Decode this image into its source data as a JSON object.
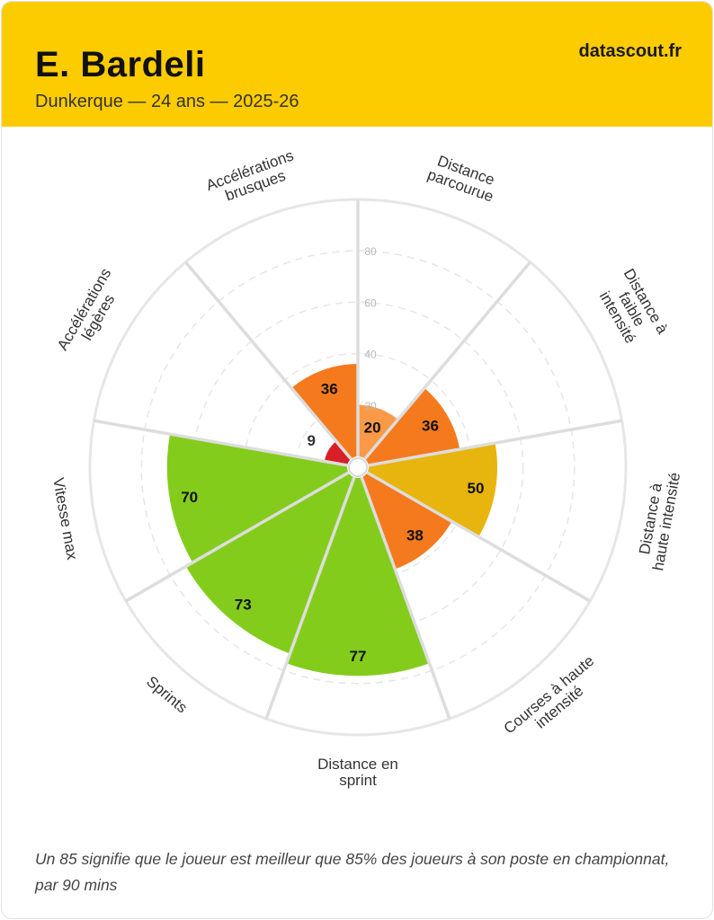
{
  "header": {
    "player": "E. Bardeli",
    "subtitle": "Dunkerque — 24 ans — 2025-26",
    "brand": "datascout.fr"
  },
  "footnote": "Un 85 signifie que le joueur est meilleur que 85% des joueurs à son poste en championnat, par 90 mins",
  "colors": {
    "header_bg": "#fccc00",
    "low": "#d81e26",
    "below_avg": "#f57a1d",
    "light_orange": "#fa9a48",
    "mid": "#e8b40e",
    "high": "#84cc1c",
    "grid": "#e6e6e6",
    "separator": "#dddddd"
  },
  "chart_data": {
    "type": "polar-bar",
    "title": "E. Bardeli",
    "range": [
      0,
      100
    ],
    "rings": [
      20,
      40,
      60,
      80
    ],
    "ring_labels": [
      "20",
      "40",
      "60",
      "80"
    ],
    "categories": [
      [
        "Distance",
        "parcourue"
      ],
      [
        "Distance à",
        "faible",
        "intensité"
      ],
      [
        "Distance à",
        "haute intensité"
      ],
      [
        "Courses à haute",
        "intensité"
      ],
      [
        "Distance en",
        "sprint"
      ],
      [
        "Sprints"
      ],
      [
        "Vitesse max"
      ],
      [
        "Accélérations",
        "légères"
      ],
      [
        "Accélérations",
        "brusques"
      ]
    ],
    "values": [
      20,
      36,
      50,
      38,
      77,
      73,
      70,
      9,
      36
    ],
    "value_labels": [
      "20",
      "36",
      "50",
      "38",
      "77",
      "73",
      "70",
      "9",
      "36"
    ],
    "bar_colors": [
      "#fa9a48",
      "#f57a1d",
      "#e8b40e",
      "#f57a1d",
      "#84cc1c",
      "#84cc1c",
      "#84cc1c",
      "#d81e26",
      "#f57a1d"
    ]
  }
}
